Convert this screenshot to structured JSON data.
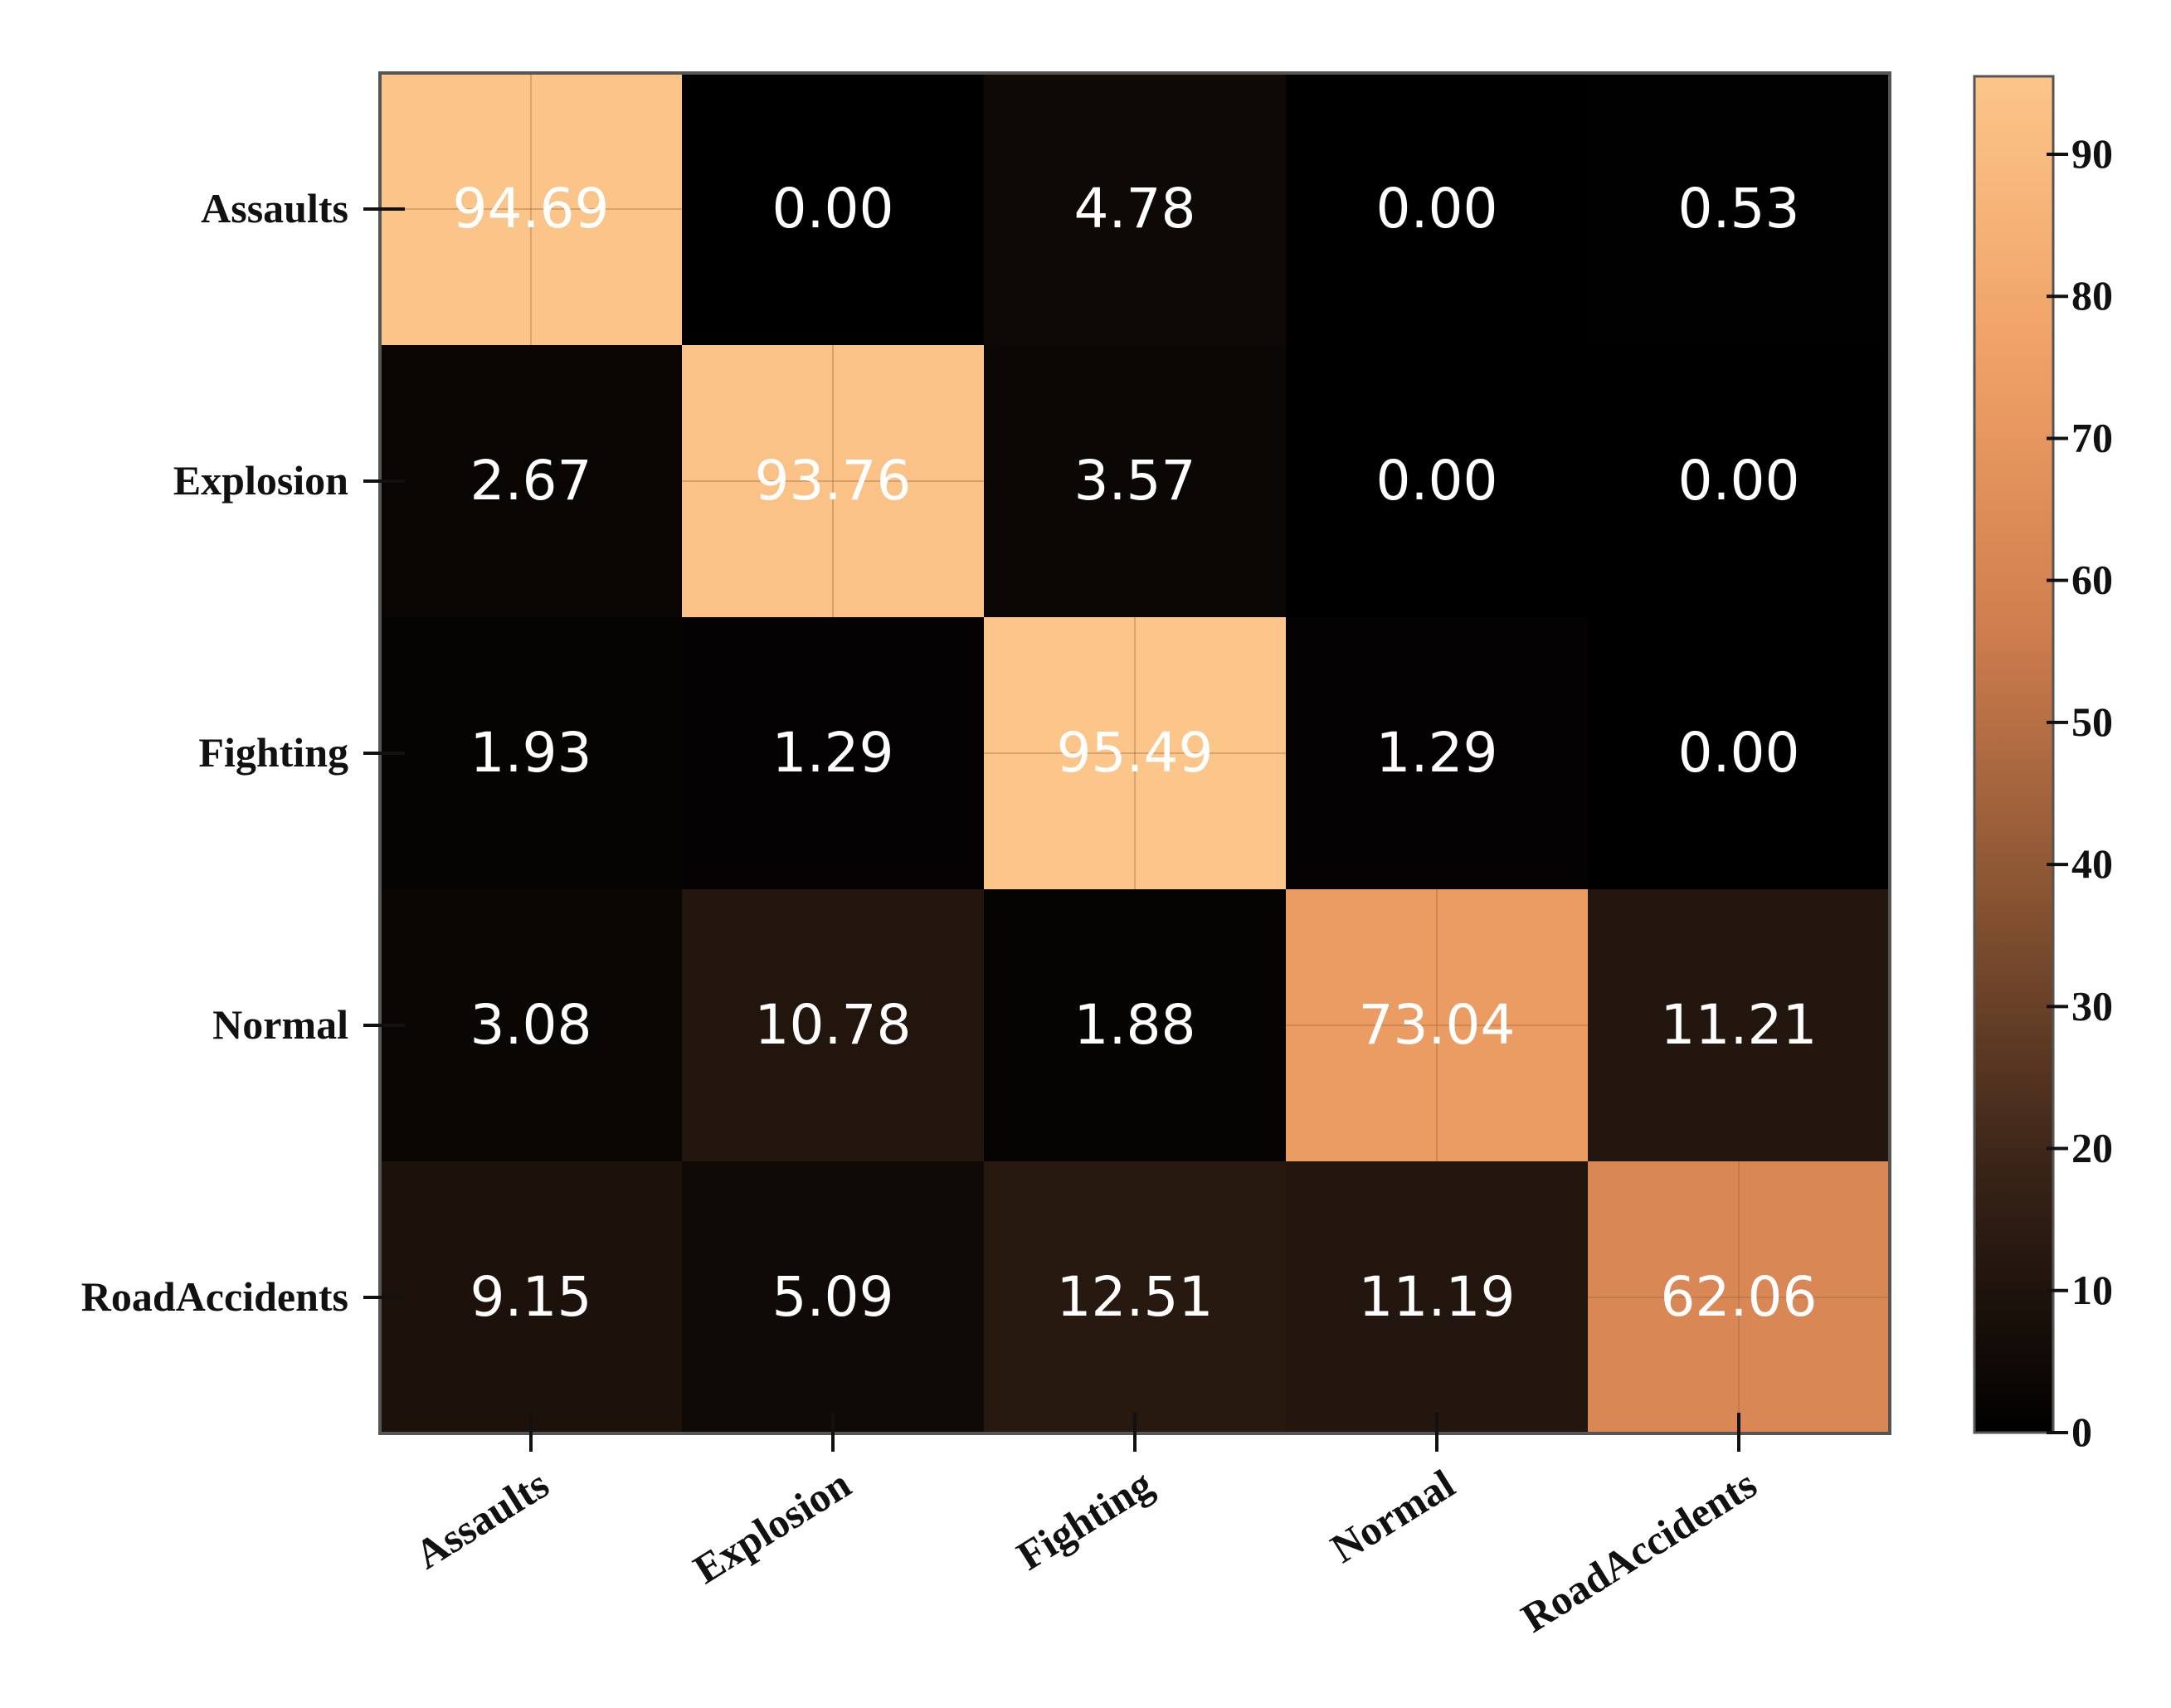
{
  "chart_data": {
    "type": "heatmap",
    "title": "",
    "xlabel": "",
    "ylabel": "",
    "row_labels": [
      "Assaults",
      "Explosion",
      "Fighting",
      "Normal",
      "RoadAccidents"
    ],
    "col_labels": [
      "Assaults",
      "Explosion",
      "Fighting",
      "Normal",
      "RoadAccidents"
    ],
    "values": [
      [
        94.69,
        0.0,
        4.78,
        0.0,
        0.53
      ],
      [
        2.67,
        93.76,
        3.57,
        0.0,
        0.0
      ],
      [
        1.93,
        1.29,
        95.49,
        1.29,
        0.0
      ],
      [
        3.08,
        10.78,
        1.88,
        73.04,
        11.21
      ],
      [
        9.15,
        5.09,
        12.51,
        11.19,
        62.06
      ]
    ],
    "value_format": "2 decimals",
    "colorbar": {
      "min": 0,
      "max": 95.49,
      "ticks": [
        0,
        10,
        20,
        30,
        40,
        50,
        60,
        70,
        80,
        90
      ],
      "colormap": [
        "#000000",
        "#3b2518",
        "#8a5533",
        "#d27f4f",
        "#f0a266",
        "#fcc58a"
      ]
    }
  }
}
